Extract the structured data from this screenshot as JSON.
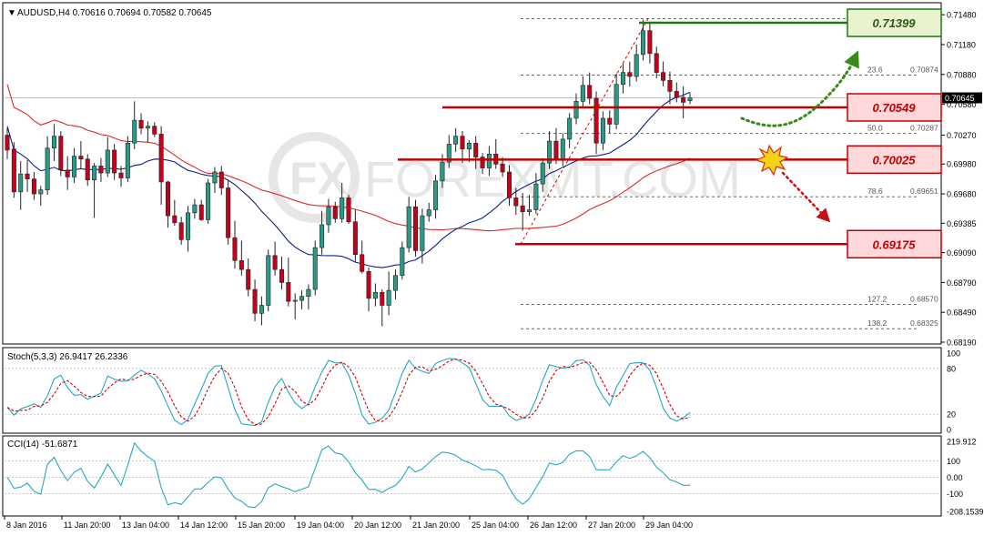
{
  "header": {
    "symbol_line": "AUDUSD,H4  0.70616 0.70694 0.70582 0.70645",
    "menu_glyph": "▼"
  },
  "watermark": {
    "text": "FOREXMT.COM"
  },
  "colors": {
    "bull": "#2a9a86",
    "bear": "#c4001a",
    "ma_fast": "#0b1f8f",
    "ma_slow": "#dc2a2a",
    "level_red": "#c00000",
    "label_red_fill": "#ffd8db",
    "label_green_fill": "#e9f3cf",
    "level_green": "#1d7a12",
    "stoch_main": "#27a7c6",
    "stoch_signal": "#d00000",
    "cci": "#27a7c6",
    "fib": "#555555"
  },
  "price_axis": {
    "ticks": [
      "0.71480",
      "0.71180",
      "0.70880",
      "0.70580",
      "0.70270",
      "0.69980",
      "0.69680",
      "0.69385",
      "0.69090",
      "0.68790",
      "0.68490",
      "0.68190"
    ],
    "current": "0.70645"
  },
  "levels": [
    {
      "id": "resistance",
      "label": "0.71399",
      "value": 0.71399,
      "style": "green"
    },
    {
      "id": "pivot",
      "label": "0.70549",
      "value": 0.70549,
      "style": "red"
    },
    {
      "id": "support1",
      "label": "0.70025",
      "value": 0.70025,
      "style": "red"
    },
    {
      "id": "support2",
      "label": "0.69175",
      "value": 0.69175,
      "style": "red"
    }
  ],
  "fib_levels": [
    {
      "ratio": "23.6",
      "price": "0.70874"
    },
    {
      "ratio": "50.0",
      "price": "0.70287"
    },
    {
      "ratio": "78.6",
      "price": "0.69651"
    },
    {
      "ratio": "127.2",
      "price": "0.68570"
    },
    {
      "ratio": "138.2",
      "price": "0.68325"
    }
  ],
  "stoch": {
    "title": "Stoch(5,3,3) 26.9417 26.2336",
    "ticks": [
      "100",
      "80",
      "20",
      "0"
    ]
  },
  "cci": {
    "title": "CCI(14) -51.6871",
    "ticks": [
      "219.912",
      "100",
      "0.00",
      "-100",
      "-208.1539"
    ]
  },
  "time_axis": [
    "8 Jan 2016",
    "11 Jan 20:00",
    "13 Jan 04:00",
    "14 Jan 12:00",
    "15 Jan 20:00",
    "19 Jan 04:00",
    "20 Jan 12:00",
    "21 Jan 20:00",
    "25 Jan 04:00",
    "26 Jan 12:00",
    "27 Jan 20:00",
    "29 Jan 04:00"
  ],
  "chart_data": {
    "type": "candlestick",
    "symbol": "AUDUSD",
    "timeframe": "H4",
    "ylim": [
      0.6819,
      0.715
    ],
    "candles": [
      [
        0.7027,
        0.7034,
        0.7003,
        0.7012
      ],
      [
        0.7013,
        0.702,
        0.6964,
        0.697
      ],
      [
        0.697,
        0.7001,
        0.6952,
        0.6988
      ],
      [
        0.6988,
        0.7002,
        0.697,
        0.6983
      ],
      [
        0.6983,
        0.699,
        0.6962,
        0.6968
      ],
      [
        0.6968,
        0.6976,
        0.6956,
        0.6972
      ],
      [
        0.6972,
        0.7026,
        0.6967,
        0.7014
      ],
      [
        0.7014,
        0.7038,
        0.7001,
        0.7026
      ],
      [
        0.7026,
        0.7031,
        0.6986,
        0.6992
      ],
      [
        0.6992,
        0.7006,
        0.6972,
        0.6985
      ],
      [
        0.6985,
        0.7014,
        0.6979,
        0.7006
      ],
      [
        0.7006,
        0.7021,
        0.6993,
        0.7003
      ],
      [
        0.7003,
        0.7008,
        0.6976,
        0.6982
      ],
      [
        0.6982,
        0.6999,
        0.6944,
        0.6996
      ],
      [
        0.6996,
        0.7004,
        0.698,
        0.6989
      ],
      [
        0.6989,
        0.7025,
        0.6985,
        0.7012
      ],
      [
        0.7012,
        0.7018,
        0.6982,
        0.6989
      ],
      [
        0.6989,
        0.6996,
        0.6975,
        0.6984
      ],
      [
        0.6984,
        0.7026,
        0.698,
        0.7019
      ],
      [
        0.7019,
        0.7061,
        0.7013,
        0.7042
      ],
      [
        0.7042,
        0.7049,
        0.7028,
        0.7034
      ],
      [
        0.7034,
        0.7041,
        0.702,
        0.7036
      ],
      [
        0.7036,
        0.704,
        0.7025,
        0.7028
      ],
      [
        0.7028,
        0.7036,
        0.6957,
        0.698
      ],
      [
        0.698,
        0.6981,
        0.6934,
        0.6946
      ],
      [
        0.6946,
        0.6962,
        0.6936,
        0.6939
      ],
      [
        0.6939,
        0.6945,
        0.6917,
        0.6922
      ],
      [
        0.6922,
        0.6956,
        0.691,
        0.6949
      ],
      [
        0.6949,
        0.6963,
        0.6943,
        0.6957
      ],
      [
        0.6957,
        0.6962,
        0.6941,
        0.6942
      ],
      [
        0.6942,
        0.6983,
        0.6938,
        0.6979
      ],
      [
        0.6979,
        0.6995,
        0.6969,
        0.699
      ],
      [
        0.699,
        0.6996,
        0.6967,
        0.6974
      ],
      [
        0.6974,
        0.6982,
        0.6917,
        0.6924
      ],
      [
        0.6924,
        0.6941,
        0.6893,
        0.6901
      ],
      [
        0.6901,
        0.6921,
        0.6886,
        0.6892
      ],
      [
        0.6892,
        0.6903,
        0.6865,
        0.6872
      ],
      [
        0.6872,
        0.6882,
        0.684,
        0.6848
      ],
      [
        0.6848,
        0.6865,
        0.6836,
        0.6856
      ],
      [
        0.6856,
        0.6912,
        0.685,
        0.6906
      ],
      [
        0.6906,
        0.692,
        0.6886,
        0.6892
      ],
      [
        0.6892,
        0.6905,
        0.6872,
        0.6879
      ],
      [
        0.6879,
        0.6904,
        0.6855,
        0.686
      ],
      [
        0.686,
        0.6868,
        0.6842,
        0.6861
      ],
      [
        0.6861,
        0.6871,
        0.6852,
        0.6865
      ],
      [
        0.6865,
        0.6877,
        0.6852,
        0.6872
      ],
      [
        0.6872,
        0.6921,
        0.6866,
        0.6914
      ],
      [
        0.6914,
        0.6951,
        0.6907,
        0.6937
      ],
      [
        0.6937,
        0.6963,
        0.6929,
        0.6955
      ],
      [
        0.6955,
        0.696,
        0.6939,
        0.6943
      ],
      [
        0.6943,
        0.6979,
        0.6939,
        0.6964
      ],
      [
        0.6964,
        0.6967,
        0.6938,
        0.694
      ],
      [
        0.694,
        0.6952,
        0.69,
        0.6907
      ],
      [
        0.6907,
        0.6921,
        0.6888,
        0.689
      ],
      [
        0.689,
        0.6894,
        0.685,
        0.6863
      ],
      [
        0.6863,
        0.6878,
        0.6855,
        0.6869
      ],
      [
        0.6869,
        0.6872,
        0.6835,
        0.6856
      ],
      [
        0.6856,
        0.689,
        0.6846,
        0.6871
      ],
      [
        0.6871,
        0.6892,
        0.6862,
        0.6886
      ],
      [
        0.6886,
        0.692,
        0.6882,
        0.6914
      ],
      [
        0.6914,
        0.6965,
        0.6909,
        0.6955
      ],
      [
        0.6955,
        0.6962,
        0.6905,
        0.6911
      ],
      [
        0.6911,
        0.6953,
        0.6898,
        0.6946
      ],
      [
        0.6946,
        0.6959,
        0.694,
        0.6952
      ],
      [
        0.6952,
        0.6987,
        0.6943,
        0.6981
      ],
      [
        0.6981,
        0.7008,
        0.6974,
        0.7
      ],
      [
        0.7,
        0.7027,
        0.6994,
        0.7018
      ],
      [
        0.7018,
        0.7034,
        0.701,
        0.7026
      ],
      [
        0.7026,
        0.7031,
        0.6999,
        0.7013
      ],
      [
        0.7013,
        0.7022,
        0.7,
        0.7019
      ],
      [
        0.7019,
        0.7026,
        0.6993,
        0.7005
      ],
      [
        0.7005,
        0.7009,
        0.6988,
        0.6994
      ],
      [
        0.6994,
        0.7016,
        0.6986,
        0.7008
      ],
      [
        0.7008,
        0.7023,
        0.6993,
        0.6998
      ],
      [
        0.6998,
        0.7005,
        0.6985,
        0.699
      ],
      [
        0.699,
        0.6997,
        0.6956,
        0.6964
      ],
      [
        0.6964,
        0.6974,
        0.6947,
        0.6956
      ],
      [
        0.6956,
        0.6969,
        0.6931,
        0.695
      ],
      [
        0.695,
        0.6967,
        0.6946,
        0.6952
      ],
      [
        0.6952,
        0.6989,
        0.6948,
        0.6978
      ],
      [
        0.6978,
        0.7004,
        0.697,
        0.6999
      ],
      [
        0.6999,
        0.7031,
        0.6993,
        0.7021
      ],
      [
        0.7021,
        0.7034,
        0.6998,
        0.7002
      ],
      [
        0.7002,
        0.7029,
        0.6996,
        0.7023
      ],
      [
        0.7023,
        0.7049,
        0.7014,
        0.7044
      ],
      [
        0.7044,
        0.7069,
        0.7038,
        0.7061
      ],
      [
        0.7061,
        0.7086,
        0.7056,
        0.7077
      ],
      [
        0.7077,
        0.709,
        0.7058,
        0.7064
      ],
      [
        0.7064,
        0.7071,
        0.7008,
        0.7019
      ],
      [
        0.7019,
        0.7051,
        0.7012,
        0.7044
      ],
      [
        0.7044,
        0.7052,
        0.7029,
        0.7038
      ],
      [
        0.7038,
        0.7089,
        0.7033,
        0.7078
      ],
      [
        0.7078,
        0.7099,
        0.7069,
        0.709
      ],
      [
        0.709,
        0.7101,
        0.7076,
        0.7086
      ],
      [
        0.7086,
        0.7118,
        0.7081,
        0.7108
      ],
      [
        0.7108,
        0.7143,
        0.7102,
        0.7132
      ],
      [
        0.7132,
        0.7139,
        0.7099,
        0.7109
      ],
      [
        0.7109,
        0.7116,
        0.7084,
        0.709
      ],
      [
        0.709,
        0.7101,
        0.7076,
        0.7082
      ],
      [
        0.7082,
        0.7091,
        0.7058,
        0.7071
      ],
      [
        0.7071,
        0.708,
        0.706,
        0.7065
      ],
      [
        0.7065,
        0.7076,
        0.7044,
        0.706
      ],
      [
        0.70616,
        0.70694,
        0.70582,
        0.70645
      ]
    ],
    "indicators": {
      "ma_fast_period": 20,
      "ma_slow_period": 50
    }
  }
}
